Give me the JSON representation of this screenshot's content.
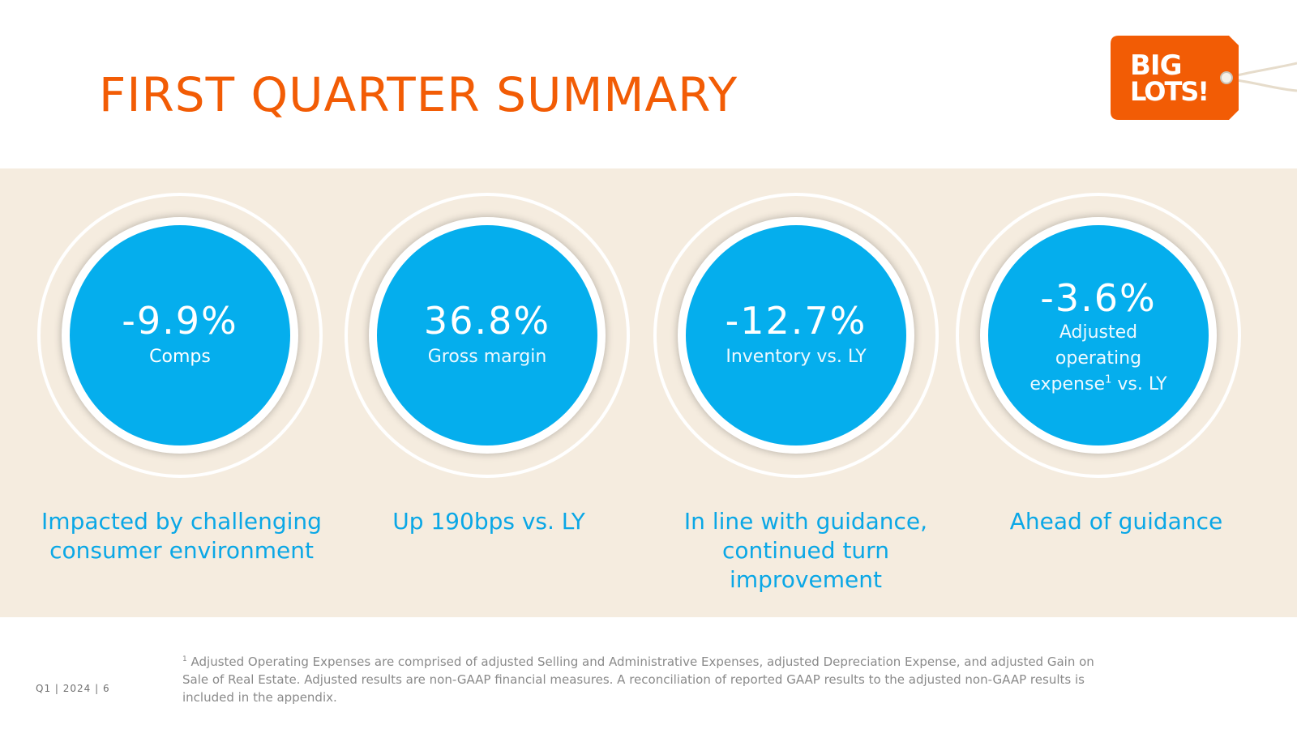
{
  "title": "FIRST QUARTER SUMMARY",
  "logo": {
    "line1": "BIG",
    "line2": "LOTS!",
    "color": "#f25c05"
  },
  "colors": {
    "accent_orange": "#f25c05",
    "kpi_blue": "#05aeed",
    "caption_blue": "#0aa7e6",
    "band": "#f5ecdf"
  },
  "kpis": [
    {
      "value": "-9.9%",
      "label": "Comps",
      "caption_line1": "Impacted by challenging",
      "caption_line2": "consumer environment"
    },
    {
      "value": "36.8%",
      "label": "Gross margin",
      "caption_line1": "Up 190bps vs. LY"
    },
    {
      "value": "-12.7%",
      "label": "Inventory vs. LY",
      "caption_line1": "In line with guidance,",
      "caption_line2": "continued turn",
      "caption_line3": "improvement"
    },
    {
      "value": "-3.6%",
      "label_line1": "Adjusted",
      "label_line2": "operating",
      "label_line3a": "expense",
      "label_sup": "1",
      "label_line3b": " vs. LY",
      "caption_line1": "Ahead of guidance"
    }
  ],
  "footer": {
    "meta": "Q1  |  2024  |  6",
    "footnote_sup": "1",
    "footnote_text": " Adjusted Operating Expenses are comprised of adjusted Selling and Administrative Expenses, adjusted Depreciation Expense, and adjusted Gain on Sale of Real Estate.  Adjusted results are non-GAAP financial measures. A reconciliation of reported GAAP results to the adjusted non-GAAP results is included in the appendix."
  }
}
